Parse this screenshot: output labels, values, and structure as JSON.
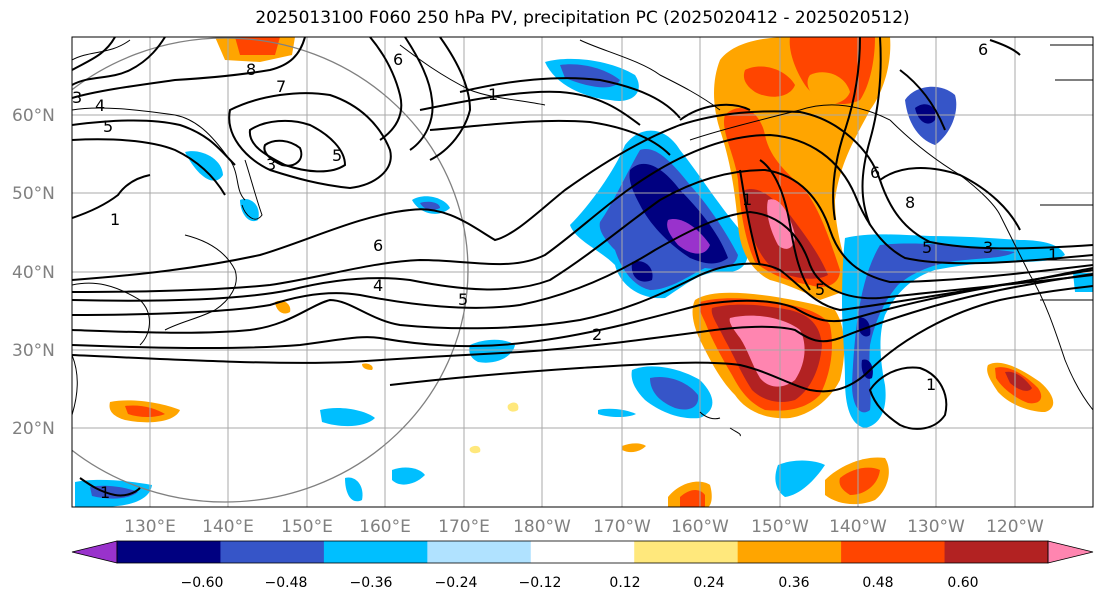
{
  "title": "2025013100 F060 250 hPa PV, precipitation PC (2025020412 - 2025020512)",
  "map": {
    "lat_labels": [
      "60°N",
      "50°N",
      "40°N",
      "30°N",
      "20°N"
    ],
    "lon_labels": [
      "130°E",
      "140°E",
      "150°E",
      "160°E",
      "170°E",
      "180°W",
      "170°W",
      "160°W",
      "150°W",
      "140°W",
      "130°W",
      "120°W"
    ],
    "contour_labels": [
      "3",
      "4",
      "5",
      "7",
      "8",
      "6",
      "1",
      "5",
      "3",
      "6",
      "4",
      "5",
      "2",
      "6",
      "8",
      "5",
      "3",
      "1",
      "1",
      "5",
      "6",
      "1",
      "1",
      "1"
    ]
  },
  "colorbar": {
    "ticks": [
      "−0.60",
      "−0.48",
      "−0.36",
      "−0.24",
      "−0.12",
      "0.12",
      "0.24",
      "0.36",
      "0.48",
      "0.60"
    ],
    "colors": [
      "#9932cc",
      "#000080",
      "#3655c8",
      "#00bfff",
      "#b0e2ff",
      "#ffffff",
      "#ffe87c",
      "#ffa500",
      "#ff4500",
      "#b22222",
      "#ff85b0"
    ]
  }
}
